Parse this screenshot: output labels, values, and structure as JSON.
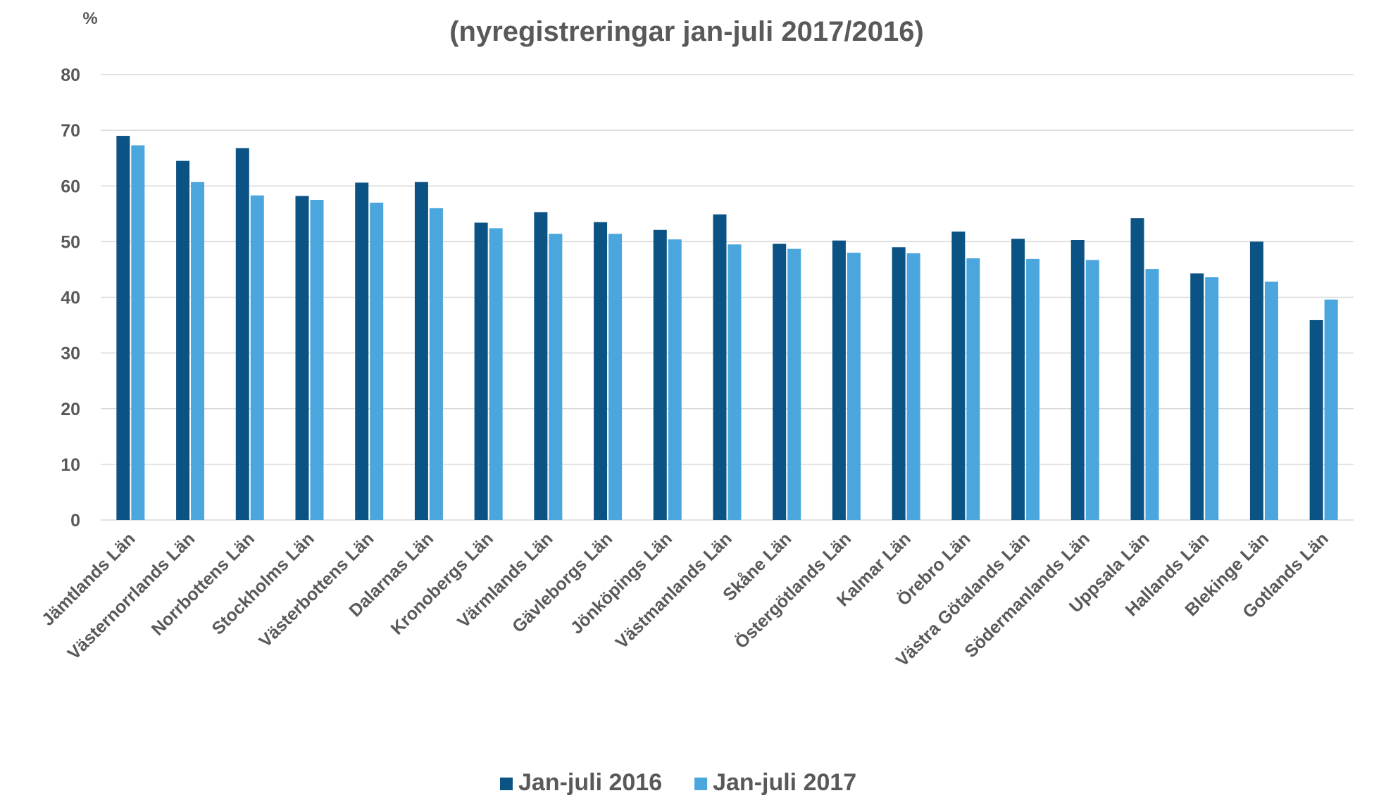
{
  "chart_data": {
    "type": "bar",
    "subtitle": "(nyregistreringar jan-juli 2017/2016)",
    "y_label": "%",
    "categories": [
      "Jämtlands Län",
      "Västernorrlands Län",
      "Norrbottens Län",
      "Stockholms Län",
      "Västerbottens Län",
      "Dalarnas Län",
      "Kronobergs Län",
      "Värmlands Län",
      "Gävleborgs Län",
      "Jönköpings Län",
      "Västmanlands Län",
      "Skåne Län",
      "Östergötlands Län",
      "Kalmar Län",
      "Örebro Län",
      "Västra Götalands Län",
      "Södermanlands Län",
      "Uppsala Län",
      "Hallands Län",
      "Blekinge Län",
      "Gotlands Län"
    ],
    "series": [
      {
        "name": "Jan-juli 2016",
        "color": "#0b5384",
        "values": [
          69,
          64.5,
          66.8,
          58.2,
          60.6,
          60.7,
          53.4,
          55.3,
          53.5,
          52.1,
          54.9,
          49.6,
          50.2,
          49,
          51.8,
          50.5,
          50.3,
          54.2,
          44.3,
          50,
          35.9
        ]
      },
      {
        "name": "Jan-juli 2017",
        "color": "#4aa6dc",
        "values": [
          67.3,
          60.7,
          58.3,
          57.5,
          57,
          56,
          52.4,
          51.4,
          51.4,
          50.4,
          49.5,
          48.7,
          48,
          47.9,
          47,
          46.9,
          46.7,
          45.1,
          43.6,
          42.8,
          39.6
        ]
      }
    ],
    "ylim": [
      0,
      80
    ],
    "yticks": [
      0,
      10,
      20,
      30,
      40,
      50,
      60,
      70,
      80
    ],
    "grid": true,
    "legend": "bottom"
  }
}
